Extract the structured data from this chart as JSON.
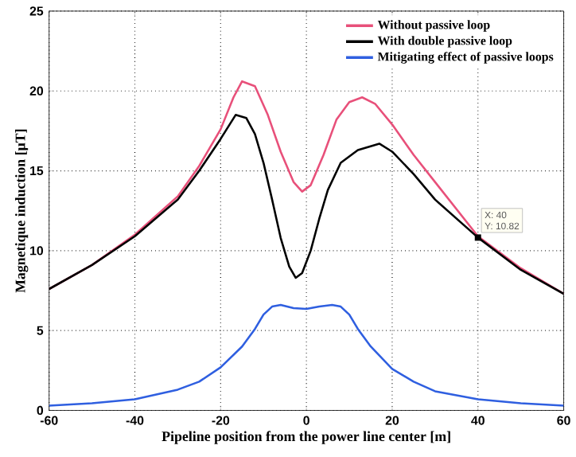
{
  "chart_data": {
    "type": "line",
    "xlabel": "Pipeline position from the power line center [m]",
    "ylabel": "Magnetique induction [μT]",
    "xlim": [
      -60,
      60
    ],
    "xticks": [
      -60,
      -40,
      -20,
      0,
      20,
      40,
      60
    ],
    "ylim": [
      0,
      25
    ],
    "yticks": [
      0,
      5,
      10,
      15,
      20,
      25
    ],
    "grid": true,
    "legend": "top right",
    "line_style": "solid",
    "marker": "none",
    "series": [
      {
        "name": "Without passive loop",
        "color": "#e8507a",
        "x": [
          -60,
          -50,
          -40,
          -30,
          -25,
          -20,
          -17,
          -15,
          -12,
          -9,
          -6,
          -3,
          -1,
          1,
          4,
          7,
          10,
          13,
          16,
          20,
          25,
          30,
          40,
          50,
          60
        ],
        "values": [
          7.6,
          9.1,
          11.0,
          13.4,
          15.3,
          17.6,
          19.6,
          20.6,
          20.3,
          18.5,
          16.2,
          14.3,
          13.7,
          14.1,
          16.0,
          18.2,
          19.3,
          19.6,
          19.2,
          17.9,
          16.0,
          14.3,
          10.9,
          8.9,
          7.3
        ]
      },
      {
        "name": "With double passive loop",
        "color": "#000000",
        "x": [
          -60,
          -50,
          -40,
          -30,
          -25,
          -20,
          -16.5,
          -14,
          -12,
          -10,
          -8,
          -6,
          -4,
          -2.5,
          -1,
          1,
          3,
          5,
          8,
          12,
          17,
          20,
          25,
          30,
          40,
          50,
          60
        ],
        "values": [
          7.6,
          9.1,
          10.9,
          13.2,
          15.0,
          17.0,
          18.5,
          18.3,
          17.3,
          15.5,
          13.2,
          10.8,
          9.0,
          8.3,
          8.6,
          10.0,
          12.0,
          13.8,
          15.5,
          16.3,
          16.7,
          16.2,
          14.8,
          13.2,
          10.82,
          8.8,
          7.3
        ]
      },
      {
        "name": "Mitigating effect of passive loops",
        "color": "#2f5fe0",
        "x": [
          -60,
          -50,
          -40,
          -30,
          -25,
          -20,
          -15,
          -12,
          -10,
          -8,
          -6,
          -3,
          0,
          3,
          6,
          8,
          10,
          12,
          15,
          20,
          25,
          30,
          40,
          50,
          60
        ],
        "values": [
          0.3,
          0.45,
          0.7,
          1.3,
          1.8,
          2.7,
          4.0,
          5.1,
          6.0,
          6.5,
          6.6,
          6.4,
          6.35,
          6.5,
          6.6,
          6.5,
          6.0,
          5.1,
          4.0,
          2.6,
          1.8,
          1.2,
          0.7,
          0.45,
          0.3
        ]
      }
    ],
    "annotations": [
      {
        "text": "X: 40",
        "x": 40,
        "y": 10.82
      },
      {
        "text": "Y: 10.82",
        "x": 40,
        "y": 10.82
      }
    ]
  }
}
